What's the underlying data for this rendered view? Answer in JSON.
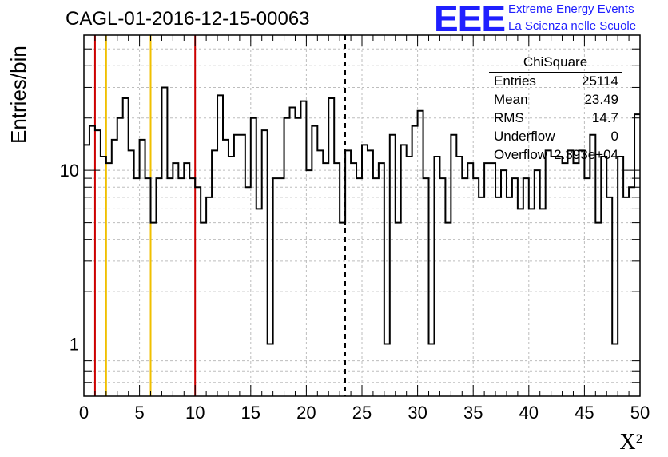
{
  "chart_data": {
    "type": "histogram",
    "title": "CAGL-01-2016-12-15-00063",
    "xlabel": "X²",
    "ylabel": "Entries/bin",
    "xlim": [
      0,
      50
    ],
    "ylim": [
      0.5,
      60
    ],
    "yscale": "log",
    "bin_width": 0.5,
    "x_ticks": [
      "0",
      "5",
      "10",
      "15",
      "20",
      "25",
      "30",
      "35",
      "40",
      "45",
      "50"
    ],
    "y_ticks": [
      "1",
      "10"
    ],
    "grid": true,
    "values": [
      14,
      18,
      17,
      12,
      11,
      15,
      20,
      26,
      13,
      9,
      15,
      9,
      5,
      9,
      30,
      9,
      11,
      9,
      11,
      9,
      8,
      5,
      7,
      13,
      27,
      15,
      12,
      16,
      16,
      8,
      20,
      6,
      17,
      1,
      9,
      9,
      20,
      23,
      20,
      25,
      10,
      18,
      13,
      11,
      26,
      11,
      5,
      13,
      11,
      9,
      14,
      13,
      9,
      11,
      1,
      16,
      5,
      14,
      12,
      18,
      22,
      9,
      1,
      12,
      9,
      5,
      16,
      12,
      9,
      11,
      9,
      7,
      11,
      11,
      7,
      10,
      7,
      9,
      6,
      9,
      6,
      10,
      6,
      13,
      12,
      12,
      11,
      13,
      11,
      13,
      9,
      16,
      5,
      12,
      7,
      1,
      12,
      7,
      8,
      21
    ],
    "vertical_lines": [
      {
        "x": 1,
        "color": "#cc0000",
        "style": "solid"
      },
      {
        "x": 2,
        "color": "#f0c000",
        "style": "solid"
      },
      {
        "x": 6,
        "color": "#f0c000",
        "style": "solid"
      },
      {
        "x": 10,
        "color": "#cc0000",
        "style": "solid"
      },
      {
        "x": 23.49,
        "color": "#000000",
        "style": "dashed"
      }
    ],
    "stats_box": {
      "title": "ChiSquare",
      "rows": [
        {
          "label": "Entries",
          "value": "25114"
        },
        {
          "label": "Mean",
          "value": "23.49"
        },
        {
          "label": "RMS",
          "value": "14.7"
        },
        {
          "label": "Underflow",
          "value": "0"
        },
        {
          "label": "Overflow",
          "value": "2.393e+04"
        }
      ]
    }
  },
  "logo": {
    "mark": "EEE",
    "line1": "Extreme Energy Events",
    "line2": "La Scienza nelle Scuole",
    "color": "#1f1fff"
  }
}
